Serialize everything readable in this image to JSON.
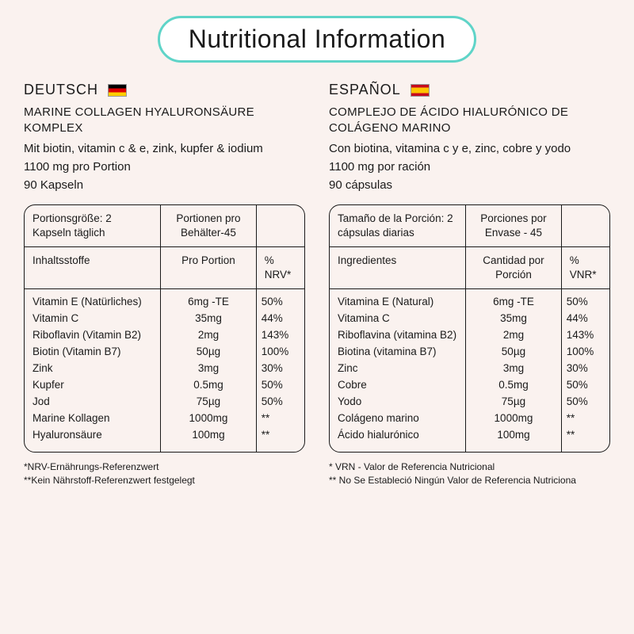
{
  "title": "Nutritional Information",
  "colors": {
    "background": "#faf2ef",
    "pill_border": "#5fd4c8",
    "pill_bg": "#ffffff",
    "text": "#1a1a1a",
    "table_border": "#1a1a1a"
  },
  "de": {
    "lang_label": "DEUTSCH",
    "flag": "de",
    "product_name": "MARINE COLLAGEN HYALURONSÄURE KOMPLEX",
    "desc1": "Mit biotin, vitamin c & e, zink, kupfer & iodium",
    "desc2": "1100 mg pro Portion",
    "desc3": "90 Kapseln",
    "serving_size": "Portionsgröße: 2 Kapseln täglich",
    "servings_per": "Portionen pro Behälter-45",
    "col_ing": "Inhaltsstoffe",
    "col_per": "Pro Portion",
    "col_nrv": "% NRV*",
    "rows": [
      [
        "Vitamin E (Natürliches)",
        "6mg -TE",
        "50%"
      ],
      [
        "Vitamin C",
        "35mg",
        "44%"
      ],
      [
        "Riboflavin (Vitamin B2)",
        "2mg",
        "143%"
      ],
      [
        "Biotin (Vitamin B7)",
        "50µg",
        "100%"
      ],
      [
        "Zink",
        "3mg",
        "30%"
      ],
      [
        "Kupfer",
        "0.5mg",
        "50%"
      ],
      [
        "Jod",
        "75µg",
        "50%"
      ],
      [
        "Marine Kollagen",
        "1000mg",
        "**"
      ],
      [
        "Hyaluronsäure",
        "100mg",
        "**"
      ]
    ],
    "foot1": "*NRV-Ernährungs-Referenzwert",
    "foot2": "**Kein Nährstoff-Referenzwert festgelegt"
  },
  "es": {
    "lang_label": "ESPAÑOL",
    "flag": "es",
    "product_name": "COMPLEJO DE ÁCIDO HIALURÓNICO DE COLÁGENO MARINO",
    "desc1": "Con biotina, vitamina c y e, zinc, cobre y yodo",
    "desc2": "1100 mg por ración",
    "desc3": "90 cápsulas",
    "serving_size": "Tamaño de la Porción: 2 cápsulas diarias",
    "servings_per": "Porciones por Envase - 45",
    "col_ing": "Ingredientes",
    "col_per": "Cantidad por Porción",
    "col_nrv": "% VNR*",
    "rows": [
      [
        "Vitamina E (Natural)",
        "6mg -TE",
        "50%"
      ],
      [
        "Vitamina C",
        "35mg",
        "44%"
      ],
      [
        "Riboflavina (vitamina B2)",
        "2mg",
        "143%"
      ],
      [
        "Biotina (vitamina B7)",
        "50µg",
        "100%"
      ],
      [
        "Zinc",
        "3mg",
        "30%"
      ],
      [
        "Cobre",
        "0.5mg",
        "50%"
      ],
      [
        "Yodo",
        "75µg",
        "50%"
      ],
      [
        "Colágeno marino",
        "1000mg",
        "**"
      ],
      [
        "Ácido hialurónico",
        "100mg",
        "**"
      ]
    ],
    "foot1": "* VRN - Valor de Referencia Nutricional",
    "foot2": "** No Se Estableció Ningún Valor de Referencia Nutriciona"
  }
}
